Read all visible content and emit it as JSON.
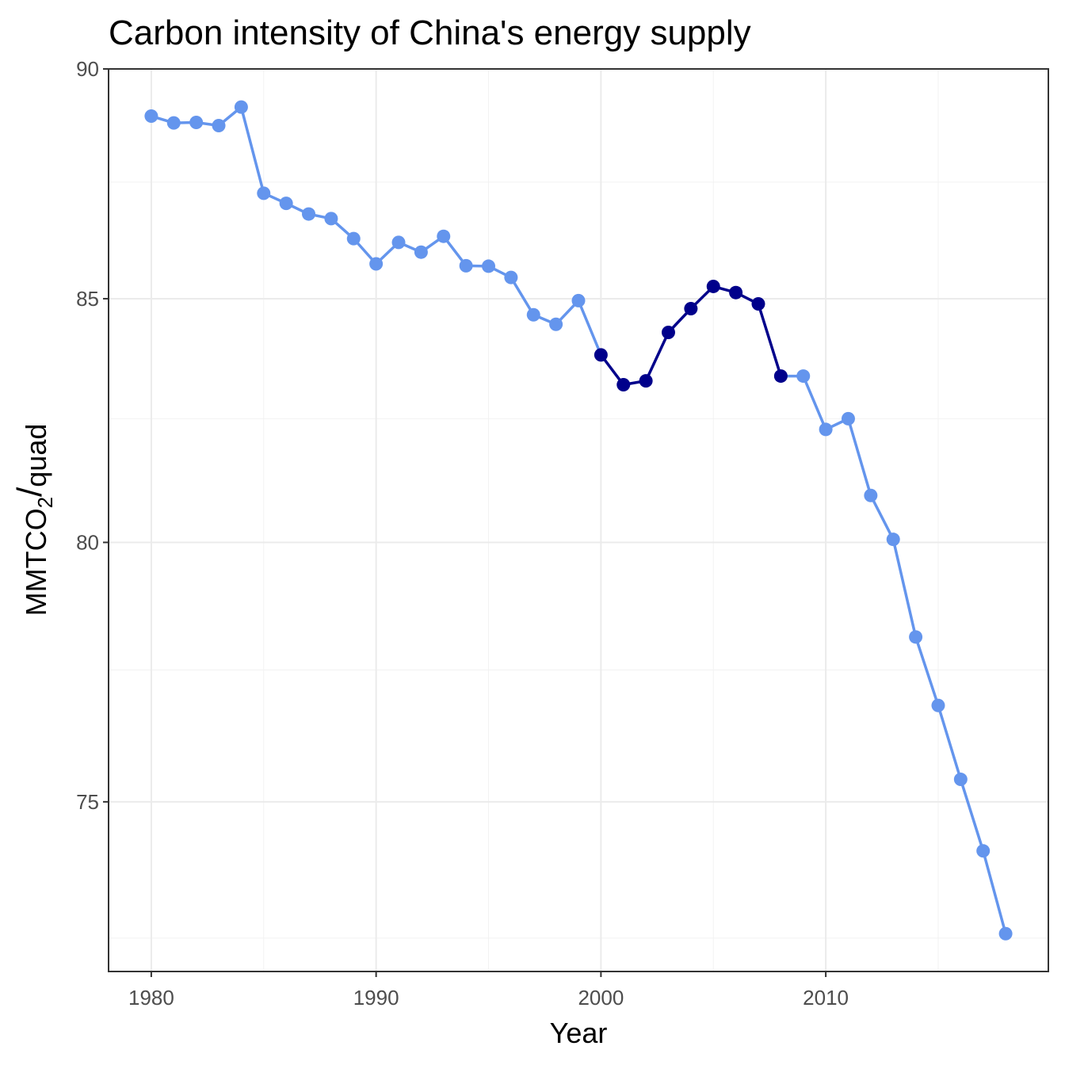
{
  "chart_data": {
    "type": "line",
    "title": "Carbon intensity of China's energy supply",
    "xlabel": "Year",
    "ylabel": {
      "main": "MMTCO",
      "subscript": "2",
      "separator": "/",
      "unit": "quad"
    },
    "y_scale": "log",
    "xlim": [
      1978.1,
      2019.9
    ],
    "ylim": [
      71.9,
      90.0
    ],
    "x_ticks": [
      1980,
      1990,
      2000,
      2010
    ],
    "x_tick_labels": [
      "1980",
      "1990",
      "2000",
      "2010"
    ],
    "y_ticks": [
      75,
      80,
      85,
      90
    ],
    "y_tick_labels": [
      "75",
      "80",
      "85",
      "90"
    ],
    "grid": true,
    "legend": "none",
    "colors": {
      "normal": "#6495ED",
      "highlight": "#00008B"
    },
    "highlight_range": [
      2000,
      2008
    ],
    "x": [
      1980,
      1981,
      1982,
      1983,
      1984,
      1985,
      1986,
      1987,
      1988,
      1989,
      1990,
      1991,
      1992,
      1993,
      1994,
      1995,
      1996,
      1997,
      1998,
      1999,
      2000,
      2001,
      2002,
      2003,
      2004,
      2005,
      2006,
      2007,
      2008,
      2009,
      2010,
      2011,
      2012,
      2013,
      2014,
      2015,
      2016,
      2017,
      2018
    ],
    "values": [
      88.95,
      88.8,
      88.81,
      88.74,
      89.15,
      87.26,
      87.04,
      86.81,
      86.71,
      86.28,
      85.74,
      86.2,
      85.99,
      86.33,
      85.7,
      85.69,
      85.45,
      84.66,
      84.46,
      84.96,
      83.82,
      83.2,
      83.28,
      84.29,
      84.79,
      85.26,
      85.13,
      84.89,
      83.38,
      83.38,
      82.28,
      82.5,
      80.94,
      80.06,
      78.14,
      76.82,
      75.42,
      74.09,
      72.58
    ]
  }
}
